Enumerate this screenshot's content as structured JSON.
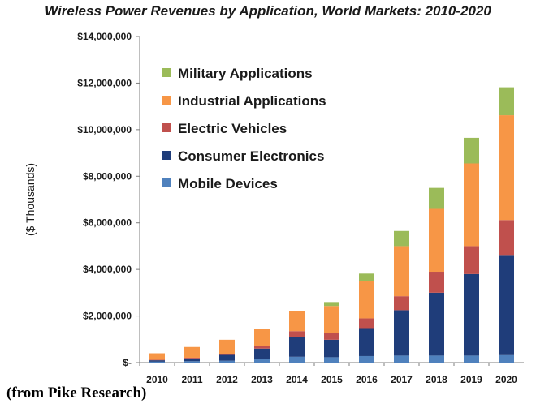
{
  "chart_data": {
    "type": "bar",
    "stacked": true,
    "title": "Wireless Power Revenues by Application, World Markets:  2010-2020",
    "xlabel": "",
    "ylabel": "($ Thousands)",
    "ylim": [
      0,
      14000000
    ],
    "yticks": [
      0,
      2000000,
      4000000,
      6000000,
      8000000,
      10000000,
      12000000,
      14000000
    ],
    "ytick_labels": [
      "$-",
      "$2,000,000",
      "$4,000,000",
      "$6,000,000",
      "$8,000,000",
      "$10,000,000",
      "$12,000,000",
      "$14,000,000"
    ],
    "grid": false,
    "legend_position": "top-left",
    "categories": [
      "2010",
      "2011",
      "2012",
      "2013",
      "2014",
      "2015",
      "2016",
      "2017",
      "2018",
      "2019",
      "2020"
    ],
    "series": [
      {
        "name": "Mobile Devices",
        "color": "#4f81bd",
        "values": [
          40000,
          60000,
          80000,
          150000,
          250000,
          230000,
          280000,
          300000,
          300000,
          300000,
          320000
        ]
      },
      {
        "name": "Consumer Electronics",
        "color": "#1f3d7a",
        "values": [
          60000,
          120000,
          250000,
          450000,
          850000,
          750000,
          1200000,
          1950000,
          2700000,
          3500000,
          4300000
        ]
      },
      {
        "name": "Electric Vehicles",
        "color": "#c0504d",
        "values": [
          20000,
          30000,
          30000,
          100000,
          250000,
          300000,
          420000,
          600000,
          900000,
          1200000,
          1500000
        ]
      },
      {
        "name": "Industrial Applications",
        "color": "#f79646",
        "values": [
          280000,
          460000,
          620000,
          760000,
          850000,
          1150000,
          1600000,
          2150000,
          2700000,
          3550000,
          4500000
        ]
      },
      {
        "name": "Military Applications",
        "color": "#9bbb59",
        "values": [
          0,
          0,
          0,
          0,
          0,
          170000,
          320000,
          650000,
          900000,
          1100000,
          1200000
        ]
      }
    ],
    "legend_order": [
      "Military Applications",
      "Industrial Applications",
      "Electric Vehicles",
      "Consumer Electronics",
      "Mobile Devices"
    ]
  },
  "source_note": "(from Pike Research)"
}
